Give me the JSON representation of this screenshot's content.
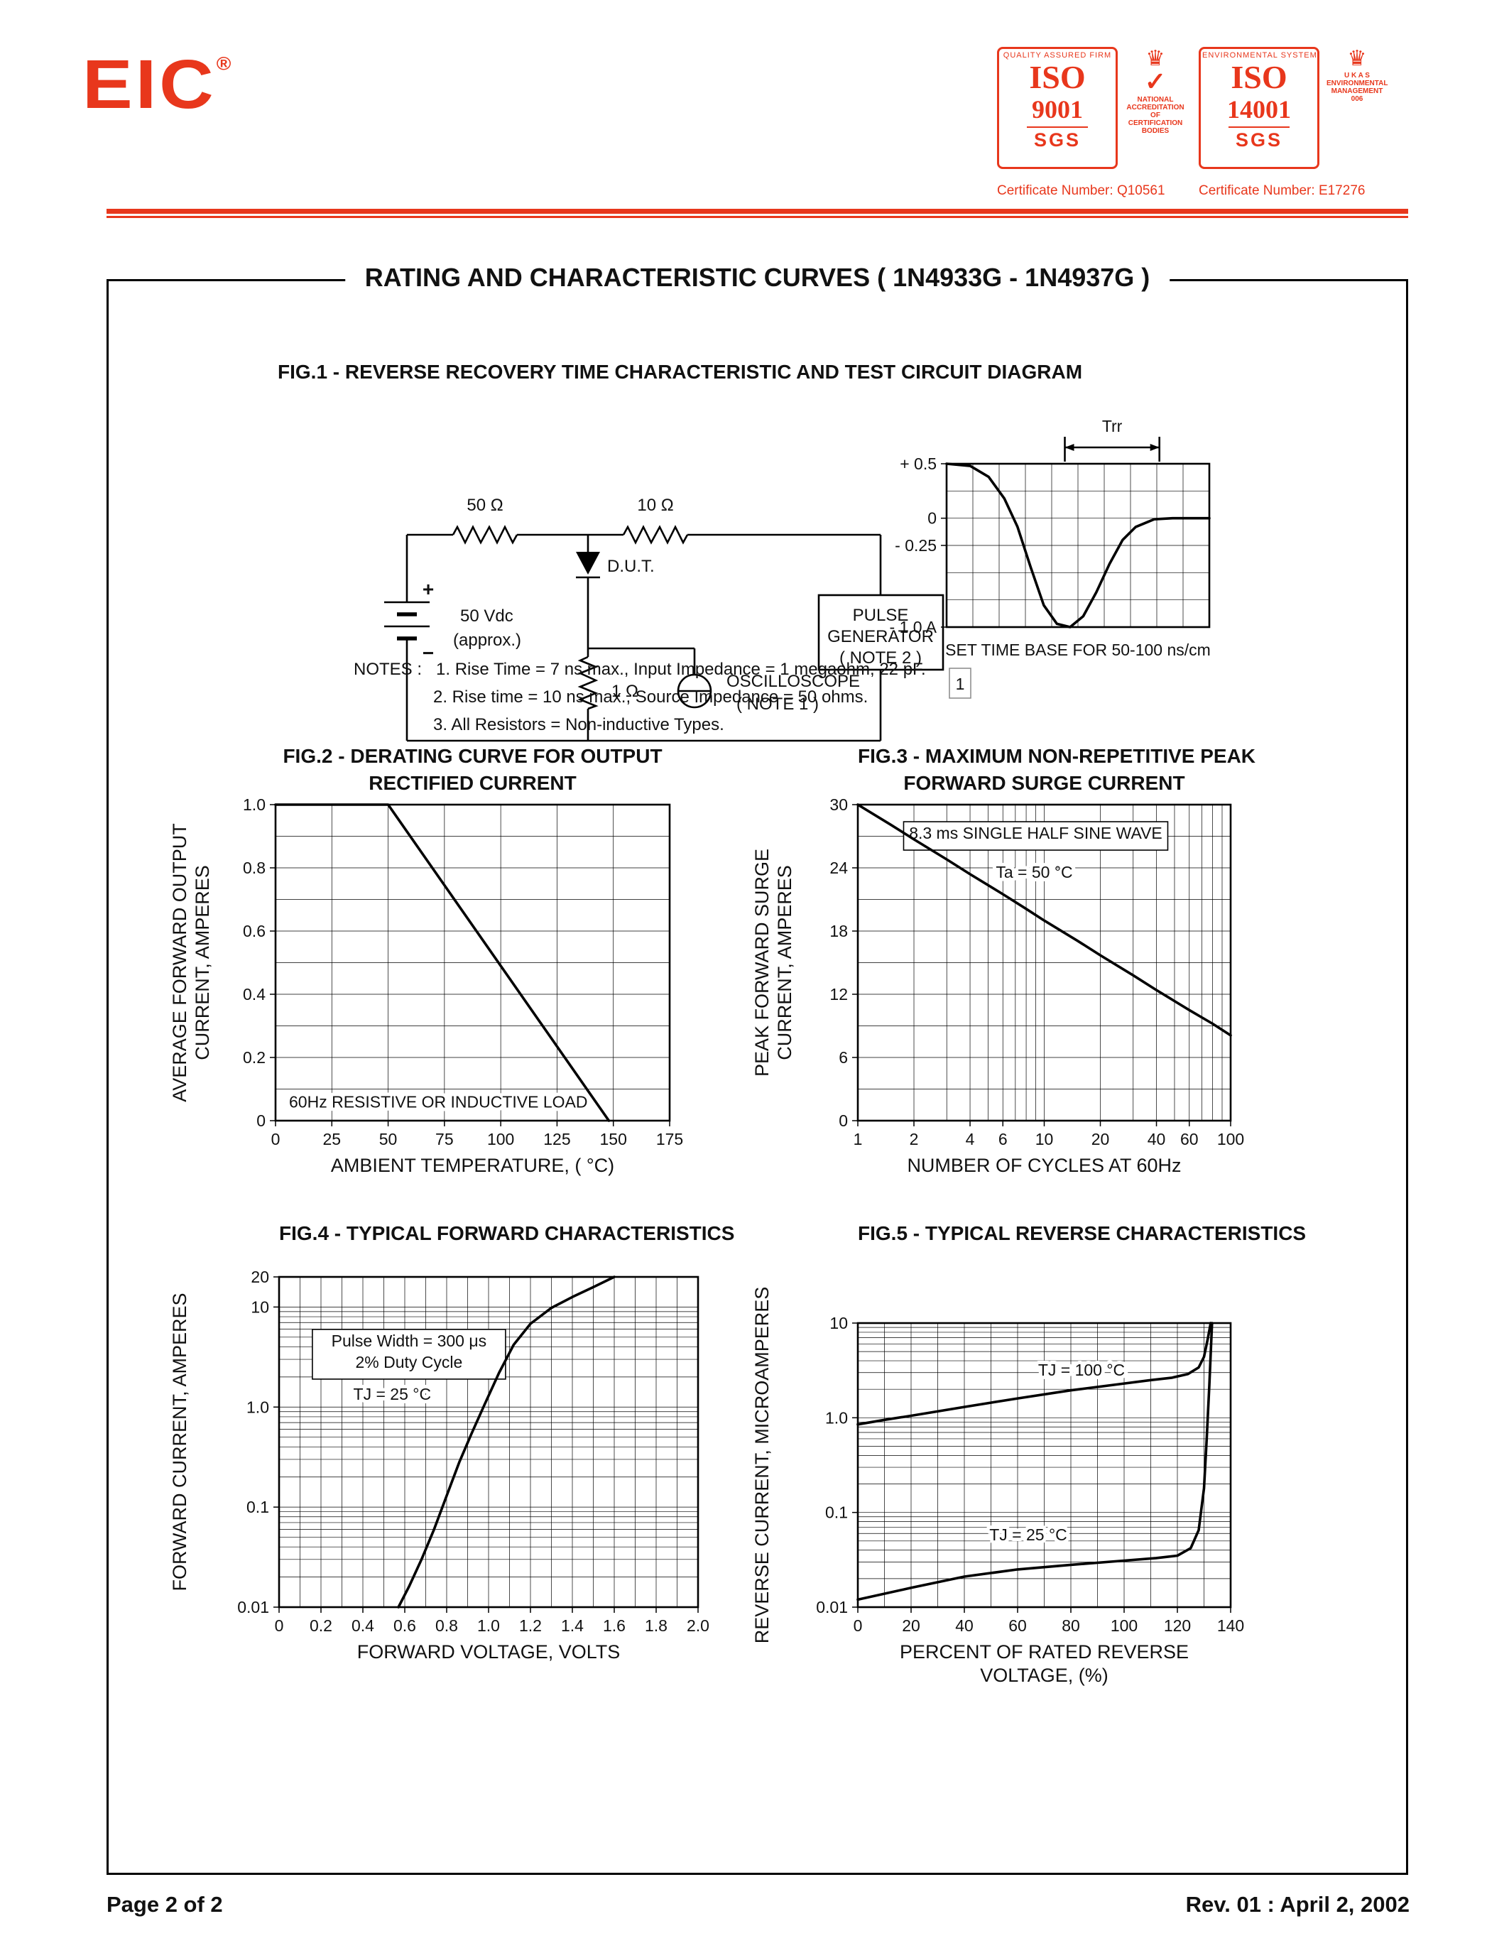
{
  "page": {
    "title": "RATING AND CHARACTERISTIC CURVES ( 1N4933G - 1N4937G )",
    "footer_left": "Page 2 of 2",
    "footer_right": "Rev. 01 : April 2, 2002",
    "accent_red": "#e8371c",
    "ink": "#111111"
  },
  "logo": {
    "text": "EIC",
    "reg": "®"
  },
  "badges": {
    "iso9001": {
      "top_text": "QUALITY ASSURED FIRM",
      "iso": "ISO",
      "number": "9001",
      "sgs": "SGS",
      "emblem_lines": [
        "NATIONAL",
        "ACCREDITATION OF",
        "CERTIFICATION BODIES"
      ],
      "cert": "Certificate Number: Q10561"
    },
    "iso14001": {
      "top_text": "ENVIRONMENTAL SYSTEM",
      "iso": "ISO",
      "number": "14001",
      "sgs": "SGS",
      "emblem_lines": [
        "U K A S",
        "ENVIRONMENTAL",
        "MANAGEMENT",
        "006"
      ],
      "cert": "Certificate Number: E17276"
    }
  },
  "fig1": {
    "title": "FIG.1 - REVERSE RECOVERY TIME CHARACTERISTIC AND TEST CIRCUIT DIAGRAM",
    "circuit": {
      "r_top_left": "50 Ω",
      "r_top_right": "10 Ω",
      "dut": "D.U.T.",
      "plus": "+",
      "minus": "−",
      "source_v": "50 Vdc",
      "source_approx": "(approx.)",
      "r_shunt": "1 Ω",
      "scope_line1": "OSCILLOSCOPE",
      "scope_line2": "( NOTE 1 )",
      "gen_line1": "PULSE",
      "gen_line2": "GENERATOR",
      "gen_line3": "( NOTE 2 )"
    },
    "notes_label": "NOTES :",
    "notes": [
      "1. Rise Time = 7 ns max., Input Impedance = 1 megaohm, 22 pF.",
      "2. Rise time = 10 ns max., Source Impedance = 50 ohms.",
      "3. All Resistors = Non-inductive Types."
    ]
  },
  "figures": {
    "fig2_t1": "FIG.2 - DERATING CURVE FOR OUTPUT",
    "fig2_t2": "RECTIFIED CURRENT",
    "fig3_t1": "FIG.3 - MAXIMUM NON-REPETITIVE PEAK",
    "fig3_t2": "FORWARD SURGE CURRENT",
    "fig4_t": "FIG.4 - TYPICAL FORWARD CHARACTERISTICS",
    "fig5_t": "FIG.5 - TYPICAL REVERSE CHARACTERISTICS"
  },
  "chart_data": [
    {
      "dom_id": "chart-waveform",
      "type": "line",
      "title": "Reverse recovery current waveform",
      "x_scale": "linear",
      "x_min": 0,
      "x_max": 10,
      "x_grid_step": 1,
      "x_ticks": [],
      "x_tick_labels": [],
      "y_scale": "linear",
      "y_min": -1.0,
      "y_max": 0.5,
      "y_grid_step": 0.25,
      "y_ticks": [
        0.5,
        0,
        -0.25,
        -1.0
      ],
      "y_tick_labels": [
        "+ 0.5",
        "0",
        "- 0.25",
        "- 1.0 A"
      ],
      "margins": {
        "l": 150,
        "t": 75,
        "r": 70,
        "b": 125
      },
      "trr": {
        "label": "Trr",
        "span": [
          4.5,
          8.1
        ]
      },
      "caption": "SET TIME BASE FOR  50-100 ns/cm",
      "corner_marker": "1",
      "series": [
        {
          "name": "recovery-current",
          "points": [
            [
              0,
              0.5
            ],
            [
              0.9,
              0.48
            ],
            [
              1.6,
              0.38
            ],
            [
              2.2,
              0.18
            ],
            [
              2.7,
              -0.08
            ],
            [
              3.2,
              -0.45
            ],
            [
              3.7,
              -0.8
            ],
            [
              4.2,
              -0.97
            ],
            [
              4.7,
              -1.0
            ],
            [
              5.2,
              -0.9
            ],
            [
              5.7,
              -0.68
            ],
            [
              6.2,
              -0.42
            ],
            [
              6.7,
              -0.2
            ],
            [
              7.2,
              -0.08
            ],
            [
              7.9,
              -0.01
            ],
            [
              8.6,
              0
            ],
            [
              10,
              0
            ]
          ]
        }
      ]
    },
    {
      "dom_id": "chart-fig2",
      "type": "line",
      "title": "FIG.2 - DERATING CURVE FOR OUTPUT RECTIFIED CURRENT",
      "x_scale": "linear",
      "x_min": 0,
      "x_max": 175,
      "x_grid_step": 25,
      "x_ticks": [
        0,
        25,
        50,
        75,
        100,
        125,
        150,
        175
      ],
      "x_tick_labels": [
        "0",
        "25",
        "50",
        "75",
        "100",
        "125",
        "150",
        "175"
      ],
      "y_scale": "linear",
      "y_min": 0,
      "y_max": 1.0,
      "y_grid_step": 0.1,
      "y_ticks": [
        1.0,
        0.8,
        0.6,
        0.4,
        0.2,
        0
      ],
      "y_tick_labels": [
        "1.0",
        "0.8",
        "0.6",
        "0.4",
        "0.2",
        "0"
      ],
      "xlabel_lines": [
        "AMBIENT TEMPERATURE, ( °C)"
      ],
      "ylabel_lines": [
        "AVERAGE FORWARD OUTPUT",
        "CURRENT, AMPERES"
      ],
      "margins": {
        "l": 160,
        "t": 15,
        "r": 45,
        "b": 100
      },
      "annotations": [
        {
          "text": "60Hz RESISTIVE OR INDUCTIVE LOAD",
          "x": 6,
          "y": 0.06,
          "align": "start"
        }
      ],
      "series": [
        {
          "name": "derating",
          "points": [
            [
              0,
              1.0
            ],
            [
              50,
              1.0
            ],
            [
              148,
              0
            ]
          ]
        }
      ]
    },
    {
      "dom_id": "chart-fig3",
      "type": "line",
      "title": "FIG.3 - MAXIMUM NON-REPETITIVE PEAK FORWARD SURGE CURRENT",
      "x_scale": "log",
      "x_min": 1,
      "x_max": 100,
      "x_ticks": [
        1,
        2,
        4,
        6,
        10,
        20,
        40,
        60,
        100
      ],
      "x_tick_labels": [
        "1",
        "2",
        "4",
        "6",
        "10",
        "20",
        "40",
        "60",
        "100"
      ],
      "y_scale": "linear",
      "y_min": 0,
      "y_max": 30,
      "y_grid_step": 3,
      "y_ticks": [
        30,
        24,
        18,
        12,
        6,
        0
      ],
      "y_tick_labels": [
        "30",
        "24",
        "18",
        "12",
        "6",
        "0"
      ],
      "xlabel_lines": [
        "NUMBER OF CYCLES AT 60Hz"
      ],
      "ylabel_lines": [
        "PEAK FORWARD SURGE",
        "CURRENT, AMPERES"
      ],
      "margins": {
        "l": 160,
        "t": 15,
        "r": 55,
        "b": 100
      },
      "annotations": [
        {
          "text": "8.3 ms SINGLE HALF SINE WAVE",
          "x": 9,
          "y": 27.3,
          "boxed": true
        },
        {
          "text": "Ta = 50 °C",
          "x": 5.5,
          "y": 23.6,
          "align": "start"
        }
      ],
      "series": [
        {
          "name": "surge-current",
          "points": [
            [
              1,
              30
            ],
            [
              1.5,
              28.1
            ],
            [
              2,
              26.7
            ],
            [
              3,
              24.8
            ],
            [
              4,
              23.4
            ],
            [
              6,
              21.5
            ],
            [
              8,
              20.1
            ],
            [
              10,
              19
            ],
            [
              15,
              17.1
            ],
            [
              20,
              15.7
            ],
            [
              30,
              13.8
            ],
            [
              40,
              12.4
            ],
            [
              60,
              10.5
            ],
            [
              80,
              9.2
            ],
            [
              100,
              8.1
            ]
          ]
        }
      ]
    },
    {
      "dom_id": "chart-fig4",
      "type": "line",
      "title": "FIG.4 - TYPICAL FORWARD CHARACTERISTICS",
      "x_scale": "linear",
      "x_min": 0,
      "x_max": 2.0,
      "x_grid_step": 0.1,
      "x_ticks": [
        0,
        0.2,
        0.4,
        0.6,
        0.8,
        1.0,
        1.2,
        1.4,
        1.6,
        1.8,
        2.0
      ],
      "x_tick_labels": [
        "0",
        "0.2",
        "0.4",
        "0.6",
        "0.8",
        "1.0",
        "1.2",
        "1.4",
        "1.6",
        "1.8",
        "2.0"
      ],
      "y_scale": "log",
      "y_min": 0.01,
      "y_max": 20,
      "y_ticks": [
        20,
        10,
        1.0,
        0.1,
        0.01
      ],
      "y_tick_labels": [
        "20",
        "10",
        "1.0",
        "0.1",
        "0.01"
      ],
      "xlabel_lines": [
        "FORWARD VOLTAGE, VOLTS"
      ],
      "ylabel_lines": [
        "FORWARD CURRENT, AMPERES"
      ],
      "margins": {
        "l": 165,
        "t": 20,
        "r": 45,
        "b": 115
      },
      "annotations": [
        {
          "lines": [
            "Pulse Width = 300 μs",
            "2% Duty Cycle"
          ],
          "x": 0.62,
          "y": 4.6,
          "boxed": true
        },
        {
          "text": "TJ = 25 °C",
          "x": 0.54,
          "y": 1.35
        }
      ],
      "series": [
        {
          "name": "forward-vi",
          "points": [
            [
              0.57,
              0.01
            ],
            [
              0.62,
              0.016
            ],
            [
              0.68,
              0.03
            ],
            [
              0.74,
              0.06
            ],
            [
              0.8,
              0.13
            ],
            [
              0.86,
              0.28
            ],
            [
              0.92,
              0.55
            ],
            [
              0.98,
              1.05
            ],
            [
              1.05,
              2.2
            ],
            [
              1.12,
              4.2
            ],
            [
              1.2,
              6.8
            ],
            [
              1.3,
              9.8
            ],
            [
              1.4,
              12.6
            ],
            [
              1.5,
              15.8
            ],
            [
              1.6,
              20
            ]
          ]
        }
      ]
    },
    {
      "dom_id": "chart-fig5",
      "type": "line",
      "title": "FIG.5 - TYPICAL REVERSE CHARACTERISTICS",
      "x_scale": "linear",
      "x_min": 0,
      "x_max": 140,
      "x_grid_step": 10,
      "x_ticks": [
        0,
        20,
        40,
        60,
        80,
        100,
        120,
        140
      ],
      "x_tick_labels": [
        "0",
        "20",
        "40",
        "60",
        "80",
        "100",
        "120",
        "140"
      ],
      "y_scale": "log",
      "y_min": 0.01,
      "y_max": 10,
      "y_ticks": [
        10,
        1.0,
        0.1,
        0.01
      ],
      "y_tick_labels": [
        "10",
        "1.0",
        "0.1",
        "0.01"
      ],
      "xlabel_lines": [
        "PERCENT OF RATED REVERSE",
        "VOLTAGE, (%)"
      ],
      "ylabel_lines": [
        "REVERSE CURRENT, MICROAMPERES"
      ],
      "margins": {
        "l": 160,
        "t": 85,
        "r": 55,
        "b": 155
      },
      "annotations": [
        {
          "text": "TJ = 100 °C",
          "x": 84,
          "y": 3.2
        },
        {
          "text": "TJ = 25 °C",
          "x": 64,
          "y": 0.058
        }
      ],
      "series": [
        {
          "name": "tj-100c",
          "points": [
            [
              0,
              0.85
            ],
            [
              10,
              0.95
            ],
            [
              20,
              1.05
            ],
            [
              40,
              1.3
            ],
            [
              60,
              1.6
            ],
            [
              80,
              1.95
            ],
            [
              100,
              2.3
            ],
            [
              110,
              2.5
            ],
            [
              118,
              2.65
            ],
            [
              124,
              2.9
            ],
            [
              128,
              3.4
            ],
            [
              130,
              4.4
            ],
            [
              131.5,
              7
            ],
            [
              132.5,
              10
            ]
          ]
        },
        {
          "name": "tj-25c",
          "points": [
            [
              0,
              0.012
            ],
            [
              20,
              0.016
            ],
            [
              40,
              0.021
            ],
            [
              60,
              0.025
            ],
            [
              80,
              0.028
            ],
            [
              100,
              0.031
            ],
            [
              112,
              0.033
            ],
            [
              120,
              0.035
            ],
            [
              125,
              0.042
            ],
            [
              128,
              0.065
            ],
            [
              130,
              0.18
            ],
            [
              131,
              0.6
            ],
            [
              132,
              2.2
            ],
            [
              133,
              10
            ]
          ]
        }
      ]
    }
  ]
}
